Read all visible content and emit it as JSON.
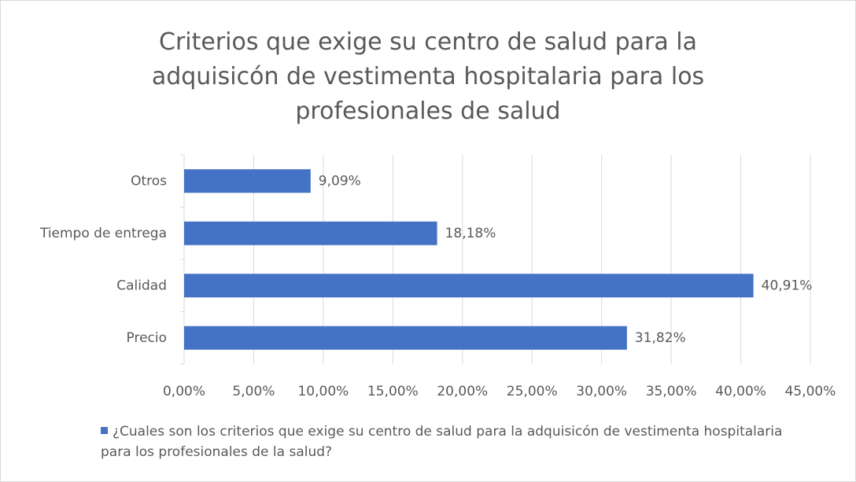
{
  "chart_data": {
    "type": "bar",
    "orientation": "horizontal",
    "title": "Criterios que exige su centro de salud para la adquisicón de vestimenta hospitalaria para los profesionales de salud",
    "categories": [
      "Precio",
      "Calidad",
      "Tiempo de entrega",
      "Otros"
    ],
    "series": [
      {
        "name": "¿Cuales son los criterios que exige su centro de salud para la adquisicón de vestimenta hospitalaria para los profesionales de la salud?",
        "color": "#4472c4",
        "values": [
          31.82,
          40.91,
          18.18,
          9.09
        ],
        "value_labels": [
          "31,82%",
          "40,91%",
          "18,18%",
          "9,09%"
        ]
      }
    ],
    "xlim": [
      0,
      45
    ],
    "xticks": [
      {
        "value": 0,
        "label": "0,00%"
      },
      {
        "value": 5,
        "label": "5,00%"
      },
      {
        "value": 10,
        "label": "10,00%"
      },
      {
        "value": 15,
        "label": "15,00%"
      },
      {
        "value": 20,
        "label": "20,00%"
      },
      {
        "value": 25,
        "label": "25,00%"
      },
      {
        "value": 30,
        "label": "30,00%"
      },
      {
        "value": 35,
        "label": "35,00%"
      },
      {
        "value": 40,
        "label": "40,00%"
      },
      {
        "value": 45,
        "label": "45,00%"
      }
    ],
    "grid": true,
    "legend": "bottom"
  }
}
